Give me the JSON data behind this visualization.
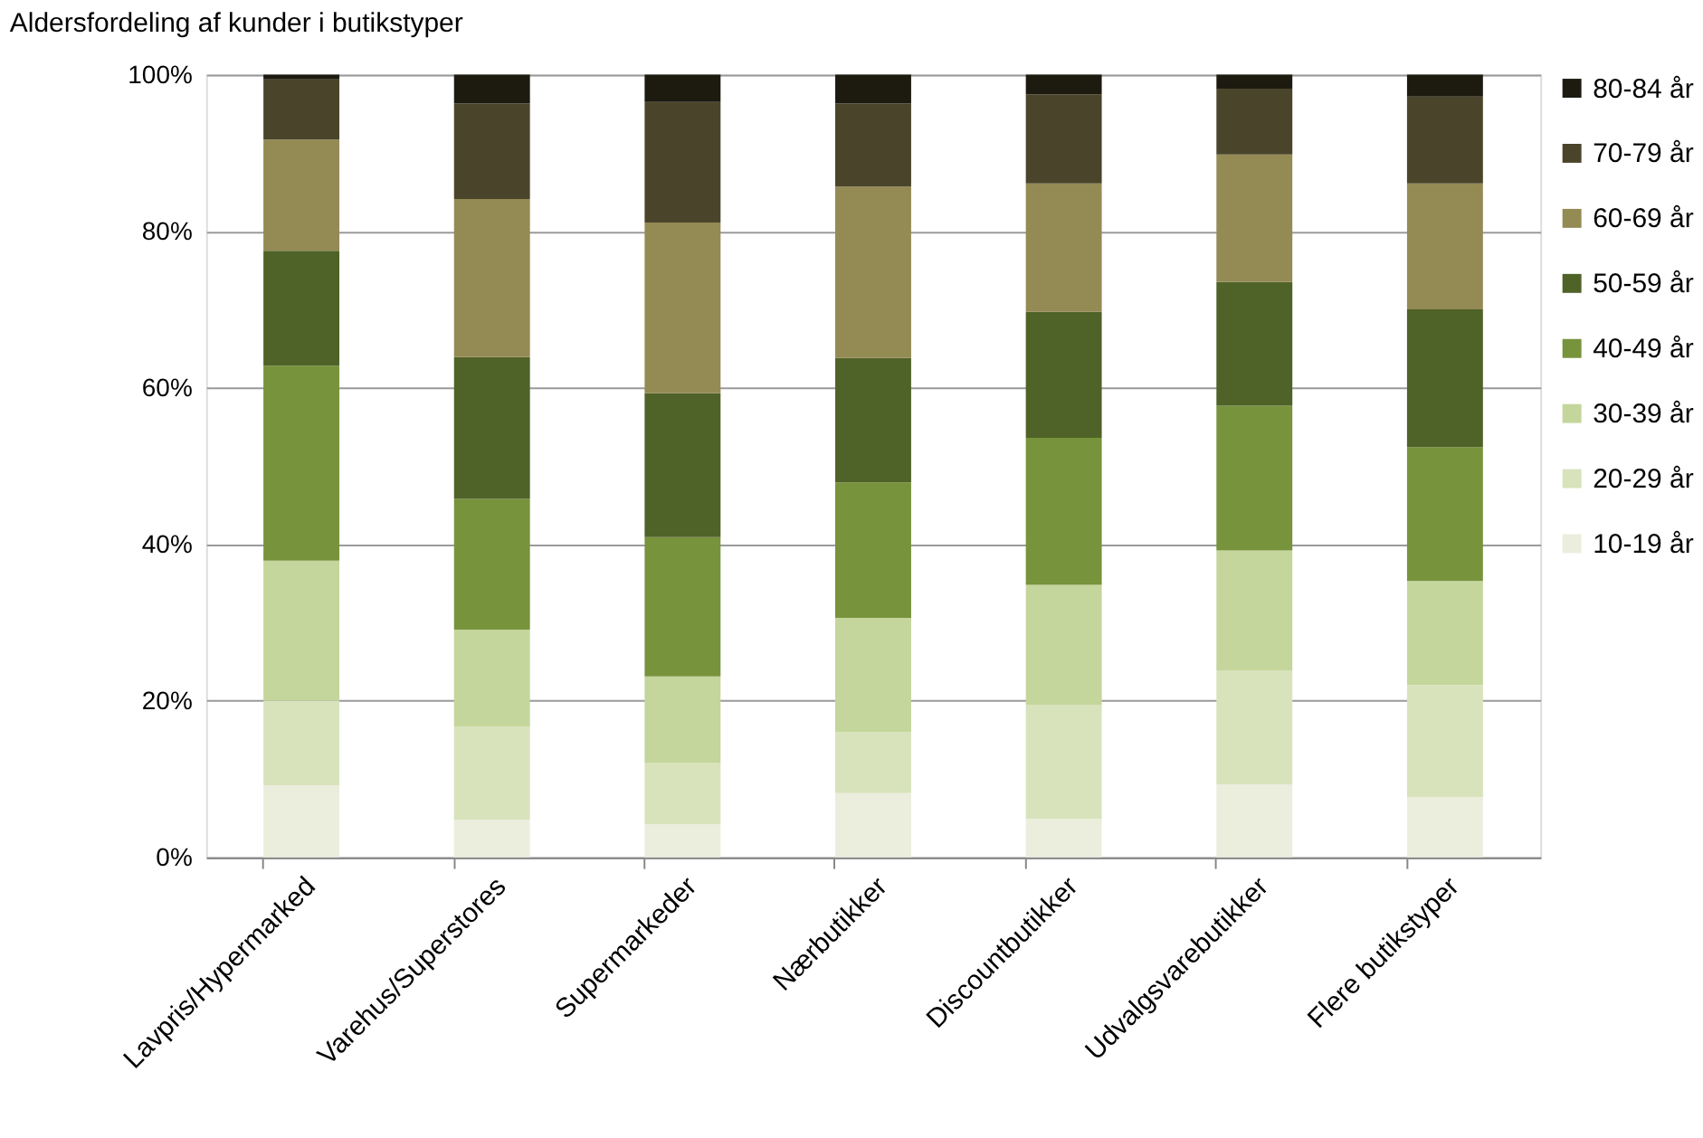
{
  "chart_data": {
    "type": "bar",
    "title": "Aldersfordeling af kunder i butikstyper",
    "stacked": true,
    "legend": "right",
    "grid": "y",
    "categories": [
      "Lavpris/Hypermarked",
      "Varehus/Superstores",
      "Supermarkeder",
      "Nærbutikker",
      "Discountbutikker",
      "Udvalgsvarebutikker",
      "Flere butikstyper"
    ],
    "ylim": [
      0,
      100
    ],
    "yticks": [
      {
        "value": 0,
        "label": "0%"
      },
      {
        "value": 20,
        "label": "20%"
      },
      {
        "value": 40,
        "label": "40%"
      },
      {
        "value": 60,
        "label": "60%"
      },
      {
        "value": 80,
        "label": "80%"
      },
      {
        "value": 100,
        "label": "100%"
      }
    ],
    "series": [
      {
        "name": "10-19 år",
        "color": "#ebeedd",
        "values": [
          9.2,
          4.8,
          4.2,
          8.2,
          4.9,
          9.3,
          7.7
        ]
      },
      {
        "name": "20-29 år",
        "color": "#d8e3bc",
        "values": [
          10.8,
          11.9,
          7.9,
          7.8,
          14.6,
          14.6,
          14.3
        ]
      },
      {
        "name": "30-39 år",
        "color": "#c4d69b",
        "values": [
          17.9,
          12.4,
          11.0,
          14.6,
          15.3,
          15.3,
          13.3
        ]
      },
      {
        "name": "40-49 år",
        "color": "#77933c",
        "values": [
          24.9,
          16.7,
          17.8,
          17.3,
          18.8,
          18.5,
          17.1
        ]
      },
      {
        "name": "50-59 år",
        "color": "#4f6228",
        "values": [
          14.7,
          18.1,
          18.4,
          15.9,
          16.1,
          15.8,
          17.6
        ]
      },
      {
        "name": "60-69 år",
        "color": "#948a54",
        "values": [
          14.2,
          20.2,
          21.8,
          21.9,
          16.4,
          16.3,
          16.1
        ]
      },
      {
        "name": "70-79 år",
        "color": "#4a452a",
        "values": [
          7.7,
          12.2,
          15.4,
          10.6,
          11.4,
          8.4,
          11.1
        ]
      },
      {
        "name": "80-84 år",
        "color": "#1d1b10",
        "values": [
          0.6,
          3.7,
          3.5,
          3.7,
          2.5,
          1.8,
          2.8
        ]
      }
    ]
  }
}
